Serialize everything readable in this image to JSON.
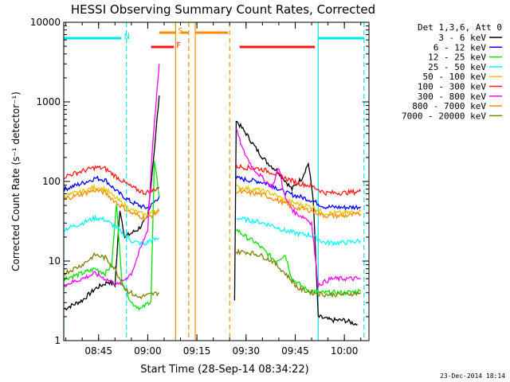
{
  "chart_data": {
    "type": "line",
    "title": "HESSI Observing Summary Count Rates, Corrected",
    "xlabel": "Start Time (28-Sep-14 08:34:22)",
    "ylabel": "Corrected Count Rate (s⁻¹ detector⁻¹)",
    "y_scale": "log",
    "ylim": [
      1,
      10000
    ],
    "xlim": [
      "08:34:22",
      "10:07:30"
    ],
    "x_ticks": [
      "08:45",
      "09:00",
      "09:15",
      "09:30",
      "09:45",
      "10:00"
    ],
    "y_ticks": [
      "1",
      "10",
      "100",
      "1000",
      "10000"
    ],
    "legend_title": "Det 1,3,6, Att 0",
    "legend_position": "right",
    "footer": "23-Dec-2014 18:14",
    "flags": [
      {
        "label": "N",
        "color": "#00e5e5",
        "segments": [
          [
            "08:34:22",
            "08:52:00"
          ],
          [
            "09:52:00",
            "10:06:00"
          ]
        ]
      },
      {
        "label": "F",
        "color": "#ff1a1a",
        "segments": [
          [
            "09:01:00",
            "09:08:00"
          ],
          [
            "09:28:00",
            "09:51:00"
          ]
        ]
      },
      {
        "label": "S",
        "color": "#ff8c00",
        "segments": [
          [
            "09:03:30",
            "09:08:30"
          ],
          [
            "09:10:00",
            "09:12:30"
          ],
          [
            "09:14:30",
            "09:24:30"
          ]
        ]
      }
    ],
    "vertical_lines": [
      {
        "time": "08:34:22",
        "color": "#00e5e5",
        "style": "solid"
      },
      {
        "time": "08:53:30",
        "color": "#00e5e5",
        "style": "dashed"
      },
      {
        "time": "09:08:30",
        "color": "#ff8c00",
        "style": "solid"
      },
      {
        "time": "09:12:30",
        "color": "#ff8c00",
        "style": "dashed"
      },
      {
        "time": "09:14:30",
        "color": "#ff8c00",
        "style": "solid"
      },
      {
        "time": "09:25:00",
        "color": "#ff8c00",
        "style": "dashed"
      },
      {
        "time": "09:52:00",
        "color": "#00e5e5",
        "style": "solid"
      },
      {
        "time": "10:06:00",
        "color": "#00e5e5",
        "style": "dashed"
      }
    ],
    "series": [
      {
        "name": "3 - 6 keV",
        "color": "#000000",
        "segments": [
          [
            [
              "08:34:30",
              2.5
            ],
            [
              "08:40:00",
              3.2
            ],
            [
              "08:44:00",
              4.5
            ],
            [
              "08:48:00",
              5.5
            ],
            [
              "08:50:00",
              5
            ],
            [
              "08:51:30",
              45
            ],
            [
              "08:53:00",
              20
            ],
            [
              "08:57:00",
              25
            ],
            [
              "09:00:00",
              35
            ],
            [
              "09:02:00",
              250
            ],
            [
              "09:03:30",
              1200
            ]
          ],
          [
            [
              "09:26:30",
              3
            ],
            [
              "09:27:00",
              580
            ],
            [
              "09:30:00",
              400
            ],
            [
              "09:33:00",
              260
            ],
            [
              "09:36:00",
              180
            ],
            [
              "09:40:00",
              130
            ],
            [
              "09:44:00",
              80
            ],
            [
              "09:47:00",
              110
            ],
            [
              "09:49:00",
              170
            ],
            [
              "09:50:30",
              60
            ],
            [
              "09:52:00",
              2
            ],
            [
              "09:56:00",
              1.8
            ],
            [
              "10:00:00",
              1.8
            ],
            [
              "10:04:00",
              1.6
            ]
          ]
        ]
      },
      {
        "name": "6 - 12 keV",
        "color": "#0000ff",
        "segments": [
          [
            [
              "08:34:30",
              80
            ],
            [
              "08:40:00",
              95
            ],
            [
              "08:44:00",
              110
            ],
            [
              "08:47:00",
              105
            ],
            [
              "08:51:00",
              72
            ],
            [
              "08:55:00",
              55
            ],
            [
              "08:59:00",
              47
            ],
            [
              "09:00:30",
              47
            ],
            [
              "09:02:00",
              55
            ],
            [
              "09:03:30",
              65
            ]
          ],
          [
            [
              "09:27:00",
              110
            ],
            [
              "09:30:00",
              105
            ],
            [
              "09:34:00",
              100
            ],
            [
              "09:38:00",
              90
            ],
            [
              "09:42:00",
              72
            ],
            [
              "09:46:00",
              65
            ],
            [
              "09:50:00",
              58
            ],
            [
              "09:54:00",
              48
            ],
            [
              "10:00:00",
              47
            ],
            [
              "10:05:00",
              48
            ]
          ]
        ]
      },
      {
        "name": "12 - 25 keV",
        "color": "#00e400",
        "segments": [
          [
            [
              "08:34:30",
              6
            ],
            [
              "08:40:00",
              7
            ],
            [
              "08:44:00",
              8
            ],
            [
              "08:47:00",
              7
            ],
            [
              "08:49:00",
              9
            ],
            [
              "08:50:30",
              55
            ],
            [
              "08:52:00",
              6
            ],
            [
              "08:55:00",
              3
            ],
            [
              "08:58:00",
              2.5
            ],
            [
              "09:01:00",
              3.2
            ],
            [
              "09:02:00",
              180
            ],
            [
              "09:03:30",
              65
            ]
          ],
          [
            [
              "09:27:00",
              25
            ],
            [
              "09:30:00",
              20
            ],
            [
              "09:33:00",
              17
            ],
            [
              "09:36:00",
              13
            ],
            [
              "09:39:00",
              10
            ],
            [
              "09:42:00",
              12
            ],
            [
              "09:44:00",
              6
            ],
            [
              "09:48:00",
              4.5
            ],
            [
              "09:52:00",
              4
            ],
            [
              "10:00:00",
              4
            ],
            [
              "10:05:00",
              4.2
            ]
          ]
        ]
      },
      {
        "name": "25 - 50 keV",
        "color": "#00ffff",
        "segments": [
          [
            [
              "08:34:30",
              25
            ],
            [
              "08:40:00",
              30
            ],
            [
              "08:44:00",
              35
            ],
            [
              "08:47:00",
              33
            ],
            [
              "08:51:00",
              25
            ],
            [
              "08:55:00",
              18
            ],
            [
              "08:59:00",
              16
            ],
            [
              "09:00:30",
              18
            ],
            [
              "09:03:30",
              19
            ]
          ],
          [
            [
              "09:27:00",
              35
            ],
            [
              "09:30:00",
              33
            ],
            [
              "09:34:00",
              31
            ],
            [
              "09:38:00",
              28
            ],
            [
              "09:42:00",
              24
            ],
            [
              "09:46:00",
              22
            ],
            [
              "09:50:00",
              21
            ],
            [
              "09:54:00",
              17
            ],
            [
              "10:00:00",
              17
            ],
            [
              "10:05:00",
              18
            ]
          ]
        ]
      },
      {
        "name": "50 - 100 keV",
        "color": "#e6c600",
        "segments": [
          [
            [
              "08:34:30",
              65
            ],
            [
              "08:40:00",
              75
            ],
            [
              "08:44:00",
              85
            ],
            [
              "08:47:00",
              80
            ],
            [
              "08:51:00",
              58
            ],
            [
              "08:55:00",
              44
            ],
            [
              "08:59:00",
              38
            ],
            [
              "09:01:00",
              40
            ],
            [
              "09:03:30",
              45
            ]
          ],
          [
            [
              "09:27:00",
              85
            ],
            [
              "09:30:00",
              82
            ],
            [
              "09:34:00",
              78
            ],
            [
              "09:38:00",
              70
            ],
            [
              "09:42:00",
              58
            ],
            [
              "09:46:00",
              52
            ],
            [
              "09:50:00",
              48
            ],
            [
              "09:54:00",
              40
            ],
            [
              "10:00:00",
              40
            ],
            [
              "10:05:00",
              42
            ]
          ]
        ]
      },
      {
        "name": "100 - 300 keV",
        "color": "#ff1a1a",
        "segments": [
          [
            [
              "08:34:30",
              115
            ],
            [
              "08:40:00",
              135
            ],
            [
              "08:44:00",
              150
            ],
            [
              "08:47:00",
              145
            ],
            [
              "08:51:00",
              110
            ],
            [
              "08:55:00",
              85
            ],
            [
              "08:59:00",
              72
            ],
            [
              "09:01:00",
              75
            ],
            [
              "09:03:30",
              85
            ]
          ],
          [
            [
              "09:27:00",
              155
            ],
            [
              "09:30:00",
              150
            ],
            [
              "09:34:00",
              145
            ],
            [
              "09:38:00",
              130
            ],
            [
              "09:42:00",
              110
            ],
            [
              "09:46:00",
              95
            ],
            [
              "09:50:00",
              88
            ],
            [
              "09:54:00",
              72
            ],
            [
              "10:00:00",
              72
            ],
            [
              "10:05:00",
              75
            ]
          ]
        ]
      },
      {
        "name": "300 - 800 keV",
        "color": "#ff00ff",
        "segments": [
          [
            [
              "08:34:30",
              5
            ],
            [
              "08:40:00",
              6
            ],
            [
              "08:44:00",
              7
            ],
            [
              "08:47:00",
              6
            ],
            [
              "08:51:00",
              5
            ],
            [
              "08:55:00",
              7
            ],
            [
              "08:58:00",
              15
            ],
            [
              "09:00:00",
              25
            ],
            [
              "09:01:30",
              300
            ],
            [
              "09:03:30",
              3000
            ]
          ],
          [
            [
              "09:27:00",
              450
            ],
            [
              "09:29:00",
              250
            ],
            [
              "09:32:00",
              150
            ],
            [
              "09:35:00",
              110
            ],
            [
              "09:38:00",
              85
            ],
            [
              "09:40:00",
              150
            ],
            [
              "09:42:00",
              60
            ],
            [
              "09:45:00",
              40
            ],
            [
              "09:48:00",
              35
            ],
            [
              "09:50:00",
              30
            ],
            [
              "09:52:00",
              5
            ],
            [
              "09:56:00",
              6
            ],
            [
              "10:00:00",
              6
            ],
            [
              "10:05:00",
              6
            ]
          ]
        ]
      },
      {
        "name": "800 - 7000 keV",
        "color": "#ff8c00",
        "segments": [
          [
            [
              "08:34:30",
              60
            ],
            [
              "08:40:00",
              70
            ],
            [
              "08:44:00",
              78
            ],
            [
              "08:47:00",
              72
            ],
            [
              "08:51:00",
              52
            ],
            [
              "08:55:00",
              40
            ],
            [
              "08:59:00",
              35
            ],
            [
              "09:01:00",
              37
            ],
            [
              "09:03:30",
              42
            ]
          ],
          [
            [
              "09:27:00",
              75
            ],
            [
              "09:30:00",
              72
            ],
            [
              "09:34:00",
              70
            ],
            [
              "09:38:00",
              62
            ],
            [
              "09:42:00",
              52
            ],
            [
              "09:46:00",
              46
            ],
            [
              "09:50:00",
              43
            ],
            [
              "09:54:00",
              37
            ],
            [
              "10:00:00",
              37
            ],
            [
              "10:05:00",
              39
            ]
          ]
        ]
      },
      {
        "name": "7000 - 20000 keV",
        "color": "#808000",
        "segments": [
          [
            [
              "08:34:30",
              7
            ],
            [
              "08:40:00",
              9
            ],
            [
              "08:44:00",
              12
            ],
            [
              "08:47:00",
              11
            ],
            [
              "08:50:00",
              8
            ],
            [
              "08:53:00",
              4.5
            ],
            [
              "08:57:00",
              3.5
            ],
            [
              "09:01:00",
              3.8
            ],
            [
              "09:03:30",
              4
            ]
          ],
          [
            [
              "09:27:00",
              13
            ],
            [
              "09:30:00",
              13
            ],
            [
              "09:34:00",
              12
            ],
            [
              "09:38:00",
              10
            ],
            [
              "09:42:00",
              7
            ],
            [
              "09:46:00",
              4.5
            ],
            [
              "09:50:00",
              4
            ],
            [
              "09:54:00",
              3.8
            ],
            [
              "10:00:00",
              3.8
            ],
            [
              "10:05:00",
              4
            ]
          ]
        ]
      }
    ]
  }
}
